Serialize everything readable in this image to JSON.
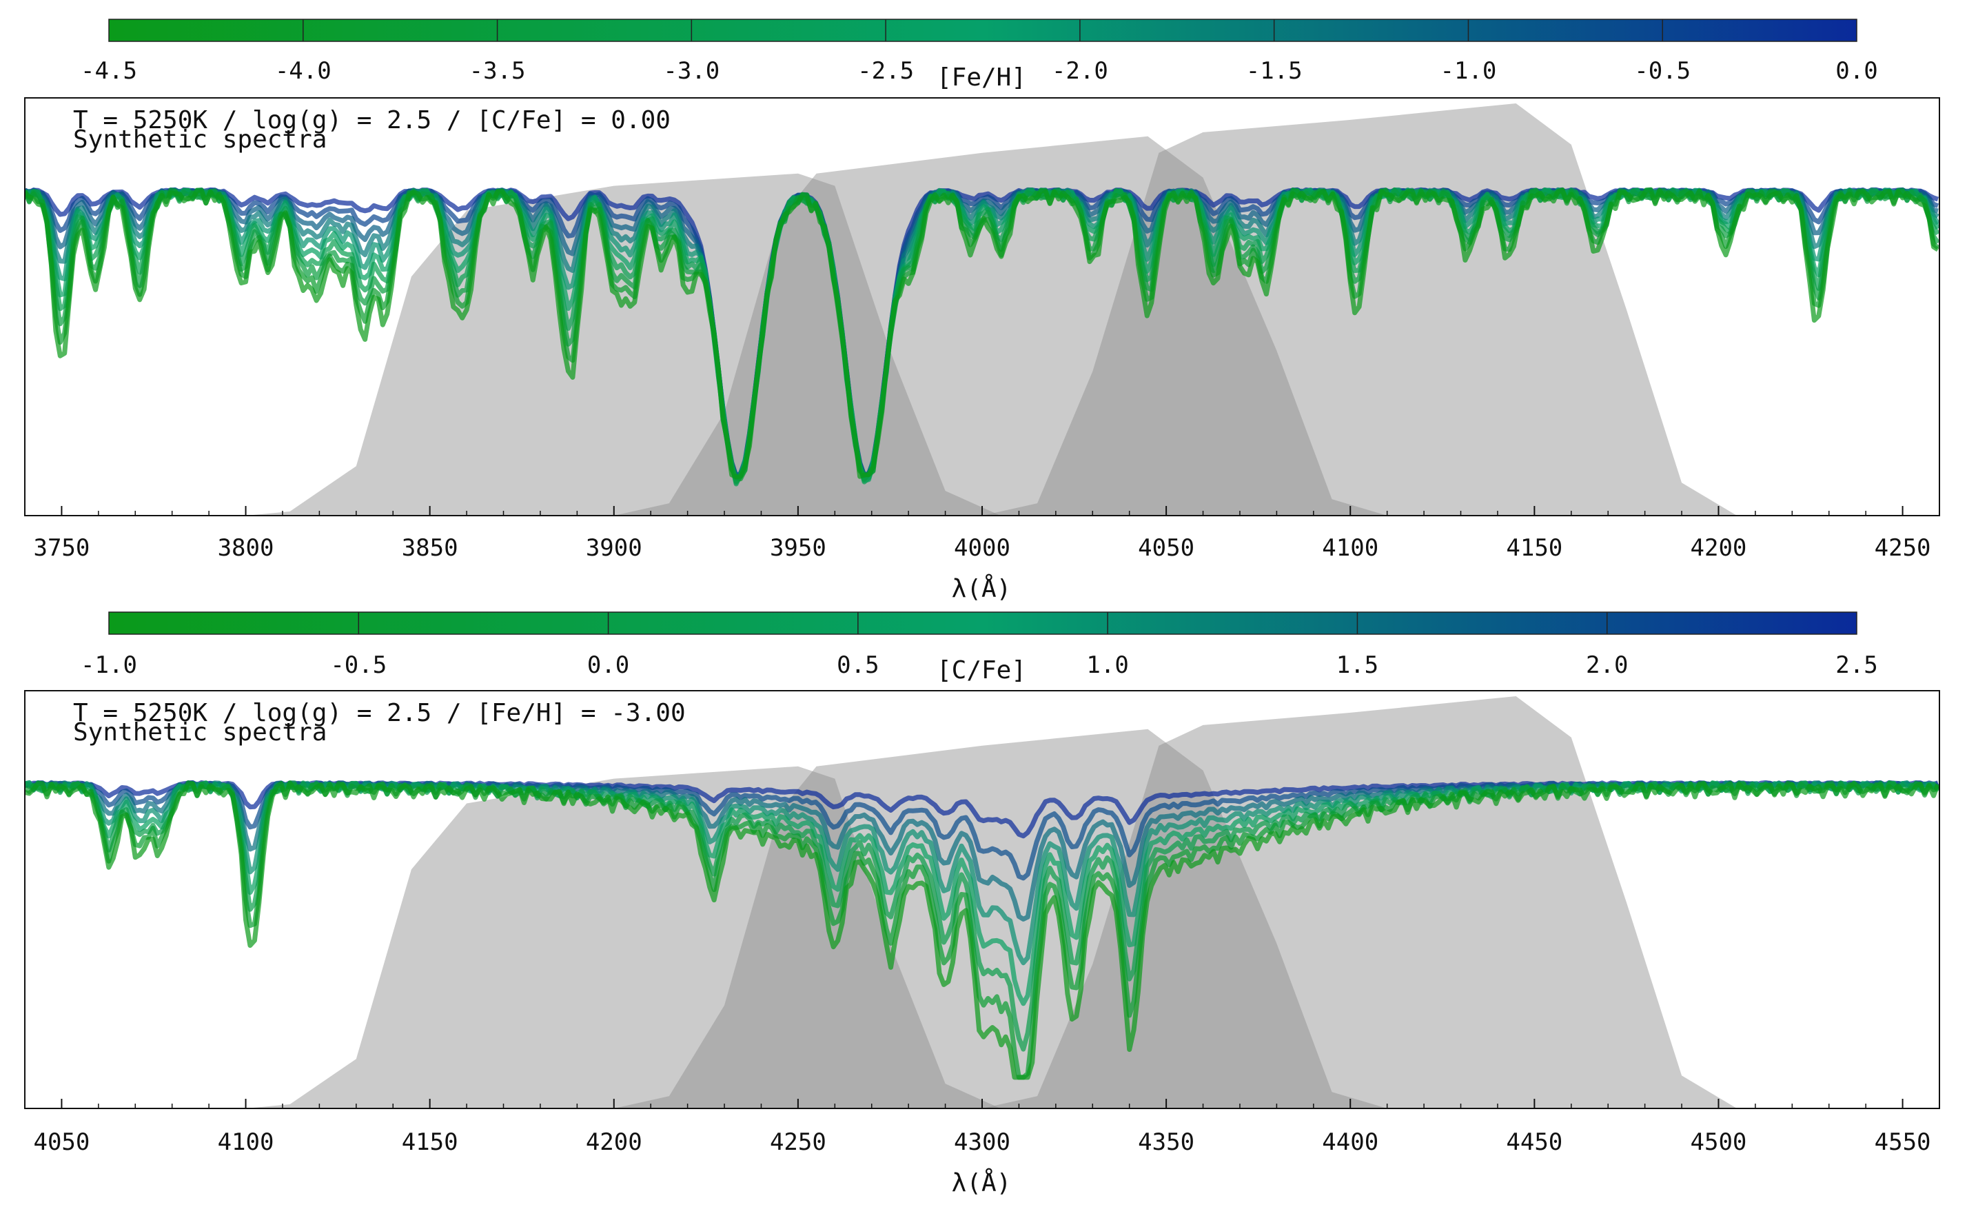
{
  "figure": {
    "panels": [
      {
        "colorbar": {
          "label": "[Fe/H]",
          "ticks": [
            "-4.5",
            "-4.0",
            "-3.5",
            "-3.0",
            "-2.5",
            "-2.0",
            "-1.5",
            "-1.0",
            "-0.5",
            "0.0"
          ],
          "range": [
            -4.5,
            0.0
          ],
          "color_low": "#0a9a1a",
          "color_mid": "#06a06a",
          "color_high": "#0a2a9a"
        },
        "annotation_line1": "T = 5250K / log(g) = 2.5 / [C/Fe] = 0.00",
        "annotation_line2": "Synthetic spectra",
        "xlabel": "λ(Å)"
      },
      {
        "colorbar": {
          "label": "[C/Fe]",
          "ticks": [
            "-1.0",
            "-0.5",
            "0.0",
            "0.5",
            "1.0",
            "1.5",
            "2.0",
            "2.5"
          ],
          "range": [
            -1.0,
            2.5
          ],
          "color_low": "#0a9a1a",
          "color_mid": "#06a06a",
          "color_high": "#0a2a9a"
        },
        "annotation_line1": "T = 5250K / log(g) = 2.5 / [Fe/H] = -3.00",
        "annotation_line2": "Synthetic spectra",
        "xlabel": "λ(Å)"
      }
    ]
  },
  "chart_data": [
    {
      "type": "line",
      "xlabel": "λ(Å)",
      "xlim": [
        3740,
        4260
      ],
      "x_ticks": [
        3750,
        3800,
        3850,
        3900,
        3950,
        4000,
        4050,
        4100,
        4150,
        4200,
        4250
      ],
      "y_ticks_shown": false,
      "grid": false,
      "color_parameter": "[Fe/H]",
      "color_parameter_values": [
        -4.5,
        -4.0,
        -3.5,
        -3.0,
        -2.5,
        -2.0,
        -1.5,
        -1.0,
        -0.5,
        0.0
      ],
      "filters": [
        {
          "profile": [
            [
              3800,
              0.0
            ],
            [
              3812,
              0.01
            ],
            [
              3830,
              0.12
            ],
            [
              3845,
              0.58
            ],
            [
              3860,
              0.74
            ],
            [
              3900,
              0.8
            ],
            [
              3950,
              0.83
            ],
            [
              3960,
              0.8
            ],
            [
              3975,
              0.4
            ],
            [
              3990,
              0.06
            ],
            [
              4005,
              0.0
            ]
          ]
        },
        {
          "profile": [
            [
              3900,
              0.0
            ],
            [
              3915,
              0.03
            ],
            [
              3930,
              0.25
            ],
            [
              3945,
              0.72
            ],
            [
              3955,
              0.83
            ],
            [
              4000,
              0.88
            ],
            [
              4045,
              0.92
            ],
            [
              4060,
              0.82
            ],
            [
              4080,
              0.4
            ],
            [
              4095,
              0.04
            ],
            [
              4110,
              0.0
            ]
          ]
        },
        {
          "profile": [
            [
              4000,
              0.0
            ],
            [
              4015,
              0.03
            ],
            [
              4030,
              0.35
            ],
            [
              4048,
              0.88
            ],
            [
              4060,
              0.93
            ],
            [
              4100,
              0.96
            ],
            [
              4145,
              1.0
            ],
            [
              4160,
              0.9
            ],
            [
              4175,
              0.5
            ],
            [
              4190,
              0.08
            ],
            [
              4205,
              0.0
            ]
          ]
        }
      ],
      "line_wavelengths": [
        [
          3750,
          0.55
        ],
        [
          3759,
          0.3
        ],
        [
          3771,
          0.35
        ],
        [
          3799,
          0.3
        ],
        [
          3806,
          0.25
        ],
        [
          3815,
          0.28
        ],
        [
          3820,
          0.3
        ],
        [
          3826,
          0.26
        ],
        [
          3832,
          0.45
        ],
        [
          3838,
          0.4
        ],
        [
          3856,
          0.28
        ],
        [
          3860,
          0.32
        ],
        [
          3878,
          0.25
        ],
        [
          3886,
          0.3
        ],
        [
          3889,
          0.45
        ],
        [
          3900,
          0.3
        ],
        [
          3905,
          0.35
        ],
        [
          3913,
          0.22
        ],
        [
          3920,
          0.28
        ],
        [
          3933.7,
          1.0
        ],
        [
          3968.5,
          1.0
        ],
        [
          3981,
          0.2
        ],
        [
          3997,
          0.18
        ],
        [
          4005,
          0.2
        ],
        [
          4030,
          0.22
        ],
        [
          4045,
          0.4
        ],
        [
          4063,
          0.3
        ],
        [
          4071,
          0.25
        ],
        [
          4077,
          0.3
        ],
        [
          4101.7,
          0.38
        ],
        [
          4132,
          0.2
        ],
        [
          4143,
          0.2
        ],
        [
          4167,
          0.18
        ],
        [
          4202,
          0.18
        ],
        [
          4226.7,
          0.42
        ],
        [
          4260,
          0.2
        ]
      ]
    },
    {
      "type": "line",
      "xlabel": "λ(Å)",
      "xlim": [
        4040,
        4560
      ],
      "x_ticks": [
        4050,
        4100,
        4150,
        4200,
        4250,
        4300,
        4350,
        4400,
        4450,
        4500,
        4550
      ],
      "y_ticks_shown": false,
      "grid": false,
      "color_parameter": "[C/Fe]",
      "color_parameter_values": [
        -1.0,
        -0.5,
        0.0,
        0.5,
        1.0,
        1.5,
        2.0,
        2.5
      ],
      "filters": [
        {
          "profile": [
            [
              4100,
              0.0
            ],
            [
              4112,
              0.01
            ],
            [
              4130,
              0.12
            ],
            [
              4145,
              0.58
            ],
            [
              4160,
              0.74
            ],
            [
              4200,
              0.8
            ],
            [
              4250,
              0.83
            ],
            [
              4260,
              0.8
            ],
            [
              4275,
              0.4
            ],
            [
              4290,
              0.06
            ],
            [
              4305,
              0.0
            ]
          ]
        },
        {
          "profile": [
            [
              4200,
              0.0
            ],
            [
              4215,
              0.03
            ],
            [
              4230,
              0.25
            ],
            [
              4245,
              0.72
            ],
            [
              4255,
              0.83
            ],
            [
              4300,
              0.88
            ],
            [
              4345,
              0.92
            ],
            [
              4360,
              0.82
            ],
            [
              4380,
              0.4
            ],
            [
              4395,
              0.04
            ],
            [
              4410,
              0.0
            ]
          ]
        },
        {
          "profile": [
            [
              4300,
              0.0
            ],
            [
              4315,
              0.03
            ],
            [
              4330,
              0.35
            ],
            [
              4348,
              0.88
            ],
            [
              4360,
              0.93
            ],
            [
              4400,
              0.96
            ],
            [
              4445,
              1.0
            ],
            [
              4460,
              0.9
            ],
            [
              4475,
              0.5
            ],
            [
              4490,
              0.08
            ],
            [
              4505,
              0.0
            ]
          ]
        }
      ],
      "line_wavelengths": [
        [
          4101.7,
          0.55
        ],
        [
          4063,
          0.25
        ],
        [
          4071,
          0.22
        ],
        [
          4077,
          0.2
        ],
        [
          4226.7,
          0.25
        ],
        [
          4340.5,
          0.55
        ],
        [
          4300,
          0.45
        ],
        [
          4305,
          0.4
        ],
        [
          4310,
          0.55
        ],
        [
          4313,
          0.45
        ],
        [
          4325,
          0.45
        ],
        [
          4290,
          0.35
        ],
        [
          4275,
          0.28
        ],
        [
          4260,
          0.3
        ]
      ]
    }
  ]
}
